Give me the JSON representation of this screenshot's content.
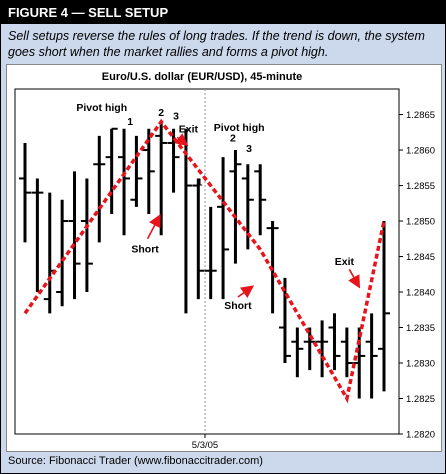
{
  "figure": {
    "header": "FIGURE 4 — SELL SETUP",
    "caption": "Sell setups reverse the rules of long trades. If the trend is down, the system goes short when the market rallies and forms a pivot high.",
    "source": "Source: Fibonacci Trader (www.fibonaccitrader.com)"
  },
  "chart_data": {
    "type": "ohlc",
    "title": "Euro/U.S. dollar (EUR/USD), 45-minute",
    "xlabel": "5/3/05",
    "ylim": [
      1.282,
      1.2868
    ],
    "y_ticks": [
      "1.2865",
      "1.2860",
      "1.2855",
      "1.2850",
      "1.2845",
      "1.2840",
      "1.2835",
      "1.2830",
      "1.2825",
      "1.2820"
    ],
    "y_tick_values": [
      1.2865,
      1.286,
      1.2855,
      1.285,
      1.2845,
      1.284,
      1.2835,
      1.283,
      1.2825,
      1.282
    ],
    "bars": [
      {
        "o": 1.2856,
        "h": 1.2861,
        "l": 1.2847,
        "c": 1.2854
      },
      {
        "o": 1.2854,
        "h": 1.2856,
        "l": 1.284,
        "c": 1.2854
      },
      {
        "o": 1.2839,
        "h": 1.2854,
        "l": 1.2837,
        "c": 1.2843
      },
      {
        "o": 1.284,
        "h": 1.2853,
        "l": 1.2838,
        "c": 1.285
      },
      {
        "o": 1.285,
        "h": 1.2857,
        "l": 1.2839,
        "c": 1.2844
      },
      {
        "o": 1.285,
        "h": 1.2856,
        "l": 1.284,
        "c": 1.2844
      },
      {
        "o": 1.2858,
        "h": 1.2862,
        "l": 1.2847,
        "c": 1.2858
      },
      {
        "o": 1.2859,
        "h": 1.2863,
        "l": 1.2851,
        "c": 1.2863
      },
      {
        "o": 1.2859,
        "h": 1.2863,
        "l": 1.2848,
        "c": 1.2856
      },
      {
        "o": 1.2853,
        "h": 1.2862,
        "l": 1.2852,
        "c": 1.2856
      },
      {
        "o": 1.286,
        "h": 1.2863,
        "l": 1.2851,
        "c": 1.2857
      },
      {
        "o": 1.2862,
        "h": 1.2864,
        "l": 1.2848,
        "c": 1.2861
      },
      {
        "o": 1.2861,
        "h": 1.2863,
        "l": 1.2854,
        "c": 1.2859
      },
      {
        "o": 1.2861,
        "h": 1.2863,
        "l": 1.2837,
        "c": 1.2855
      },
      {
        "o": 1.2855,
        "h": 1.2856,
        "l": 1.2839,
        "c": 1.2843
      },
      {
        "o": 1.2843,
        "h": 1.2852,
        "l": 1.2839,
        "c": 1.2843
      },
      {
        "o": 1.2852,
        "h": 1.2859,
        "l": 1.2839,
        "c": 1.2846
      },
      {
        "o": 1.2857,
        "h": 1.286,
        "l": 1.2844,
        "c": 1.2858
      },
      {
        "o": 1.2856,
        "h": 1.2858,
        "l": 1.2846,
        "c": 1.2853
      },
      {
        "o": 1.2857,
        "h": 1.2858,
        "l": 1.2848,
        "c": 1.2853
      },
      {
        "o": 1.2849,
        "h": 1.285,
        "l": 1.2837,
        "c": 1.2849
      },
      {
        "o": 1.2835,
        "h": 1.2842,
        "l": 1.283,
        "c": 1.2831
      },
      {
        "o": 1.2833,
        "h": 1.2835,
        "l": 1.2828,
        "c": 1.2832
      },
      {
        "o": 1.2833,
        "h": 1.2835,
        "l": 1.2829,
        "c": 1.2833
      },
      {
        "o": 1.2833,
        "h": 1.2836,
        "l": 1.2828,
        "c": 1.2833
      },
      {
        "o": 1.2835,
        "h": 1.2837,
        "l": 1.2829,
        "c": 1.2831
      },
      {
        "o": 1.2833,
        "h": 1.2835,
        "l": 1.2828,
        "c": 1.283
      },
      {
        "o": 1.283,
        "h": 1.2835,
        "l": 1.2825,
        "c": 1.2831
      },
      {
        "o": 1.2833,
        "h": 1.2837,
        "l": 1.2825,
        "c": 1.2831
      },
      {
        "o": 1.2832,
        "h": 1.285,
        "l": 1.2826,
        "c": 1.2837
      }
    ],
    "trendline": [
      {
        "bar": 0,
        "y": 1.2837
      },
      {
        "bar": 11,
        "y": 1.2864
      },
      {
        "bar": 19,
        "y": 1.2846
      },
      {
        "bar": 26,
        "y": 1.2825
      },
      {
        "bar": 29,
        "y": 1.285
      }
    ],
    "annotations": [
      {
        "text": "Pivot high",
        "bar": 6.2,
        "y": 1.28655
      },
      {
        "text": "1",
        "bar": 8.5,
        "y": 1.28635
      },
      {
        "text": "2",
        "bar": 11,
        "y": 1.28648
      },
      {
        "text": "3",
        "bar": 12.2,
        "y": 1.28643
      },
      {
        "text": "Exit",
        "bar": 13.2,
        "y": 1.28625
      },
      {
        "text": "Pivot high",
        "bar": 17.3,
        "y": 1.28627
      },
      {
        "text": "2",
        "bar": 16.8,
        "y": 1.28612
      },
      {
        "text": "3",
        "bar": 18.1,
        "y": 1.28597
      },
      {
        "text": "1",
        "bar": 14.1,
        "y": 1.2855
      },
      {
        "text": "Short",
        "bar": 9.7,
        "y": 1.28456
      },
      {
        "text": "Short",
        "bar": 17.2,
        "y": 1.28376
      },
      {
        "text": "Exit",
        "bar": 25.8,
        "y": 1.28438
      }
    ],
    "arrows": [
      {
        "from": {
          "bar": 12.3,
          "y": 1.28618
        },
        "to": {
          "bar": 13.1,
          "y": 1.28607
        }
      },
      {
        "from": {
          "bar": 9.9,
          "y": 1.28475
        },
        "to": {
          "bar": 10.9,
          "y": 1.28508
        }
      },
      {
        "from": {
          "bar": 17.2,
          "y": 1.28393
        },
        "to": {
          "bar": 18.4,
          "y": 1.28408
        }
      },
      {
        "from": {
          "bar": 26.2,
          "y": 1.28432
        },
        "to": {
          "bar": 27.0,
          "y": 1.28407
        }
      }
    ],
    "colors": {
      "trendline": "#e8141b",
      "bars": "#000000",
      "panel_bg": "#ccd9ed"
    }
  }
}
